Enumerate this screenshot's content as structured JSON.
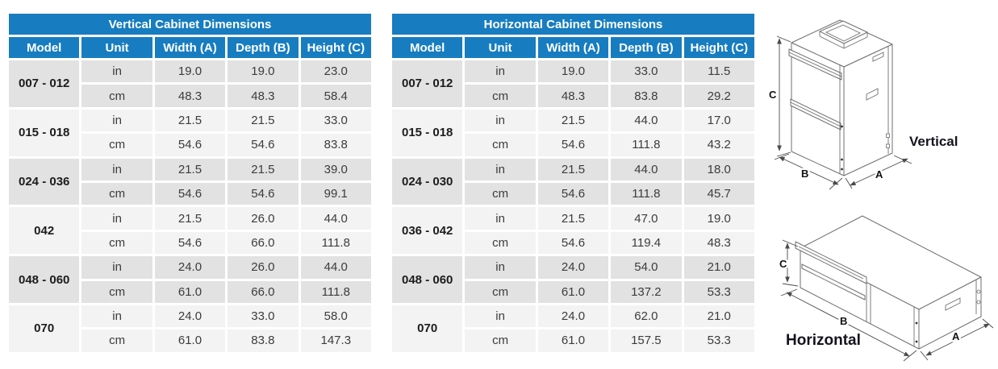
{
  "colors": {
    "accent": "#177dc0",
    "row_dark": "#e2e2e2",
    "row_light": "#f3f3f3"
  },
  "tables": [
    {
      "title": "Vertical Cabinet Dimensions",
      "columns": [
        "Model",
        "Unit",
        "Width (A)",
        "Depth (B)",
        "Height (C)"
      ],
      "groups": [
        {
          "model": "007 - 012",
          "rows": [
            {
              "unit": "in",
              "values": [
                "19.0",
                "19.0",
                "23.0"
              ]
            },
            {
              "unit": "cm",
              "values": [
                "48.3",
                "48.3",
                "58.4"
              ]
            }
          ]
        },
        {
          "model": "015 - 018",
          "rows": [
            {
              "unit": "in",
              "values": [
                "21.5",
                "21.5",
                "33.0"
              ]
            },
            {
              "unit": "cm",
              "values": [
                "54.6",
                "54.6",
                "83.8"
              ]
            }
          ]
        },
        {
          "model": "024 - 036",
          "rows": [
            {
              "unit": "in",
              "values": [
                "21.5",
                "21.5",
                "39.0"
              ]
            },
            {
              "unit": "cm",
              "values": [
                "54.6",
                "54.6",
                "99.1"
              ]
            }
          ]
        },
        {
          "model": "042",
          "rows": [
            {
              "unit": "in",
              "values": [
                "21.5",
                "26.0",
                "44.0"
              ]
            },
            {
              "unit": "cm",
              "values": [
                "54.6",
                "66.0",
                "111.8"
              ]
            }
          ]
        },
        {
          "model": "048 - 060",
          "rows": [
            {
              "unit": "in",
              "values": [
                "24.0",
                "26.0",
                "44.0"
              ]
            },
            {
              "unit": "cm",
              "values": [
                "61.0",
                "66.0",
                "111.8"
              ]
            }
          ]
        },
        {
          "model": "070",
          "rows": [
            {
              "unit": "in",
              "values": [
                "24.0",
                "33.0",
                "58.0"
              ]
            },
            {
              "unit": "cm",
              "values": [
                "61.0",
                "83.8",
                "147.3"
              ]
            }
          ]
        }
      ]
    },
    {
      "title": "Horizontal Cabinet Dimensions",
      "columns": [
        "Model",
        "Unit",
        "Width (A)",
        "Depth (B)",
        "Height (C)"
      ],
      "groups": [
        {
          "model": "007 - 012",
          "rows": [
            {
              "unit": "in",
              "values": [
                "19.0",
                "33.0",
                "11.5"
              ]
            },
            {
              "unit": "cm",
              "values": [
                "48.3",
                "83.8",
                "29.2"
              ]
            }
          ]
        },
        {
          "model": "015 - 018",
          "rows": [
            {
              "unit": "in",
              "values": [
                "21.5",
                "44.0",
                "17.0"
              ]
            },
            {
              "unit": "cm",
              "values": [
                "54.6",
                "111.8",
                "43.2"
              ]
            }
          ]
        },
        {
          "model": "024 - 030",
          "rows": [
            {
              "unit": "in",
              "values": [
                "21.5",
                "44.0",
                "18.0"
              ]
            },
            {
              "unit": "cm",
              "values": [
                "54.6",
                "111.8",
                "45.7"
              ]
            }
          ]
        },
        {
          "model": "036 - 042",
          "rows": [
            {
              "unit": "in",
              "values": [
                "21.5",
                "47.0",
                "19.0"
              ]
            },
            {
              "unit": "cm",
              "values": [
                "54.6",
                "119.4",
                "48.3"
              ]
            }
          ]
        },
        {
          "model": "048 - 060",
          "rows": [
            {
              "unit": "in",
              "values": [
                "24.0",
                "54.0",
                "21.0"
              ]
            },
            {
              "unit": "cm",
              "values": [
                "61.0",
                "137.2",
                "53.3"
              ]
            }
          ]
        },
        {
          "model": "070",
          "rows": [
            {
              "unit": "in",
              "values": [
                "24.0",
                "62.0",
                "21.0"
              ]
            },
            {
              "unit": "cm",
              "values": [
                "61.0",
                "157.5",
                "53.3"
              ]
            }
          ]
        }
      ]
    }
  ],
  "figures": {
    "vertical": {
      "label": "Vertical",
      "dims": {
        "width": "A",
        "depth": "B",
        "height": "C"
      }
    },
    "horizontal": {
      "label": "Horizontal",
      "dims": {
        "width": "A",
        "depth": "B",
        "height": "C"
      }
    }
  }
}
